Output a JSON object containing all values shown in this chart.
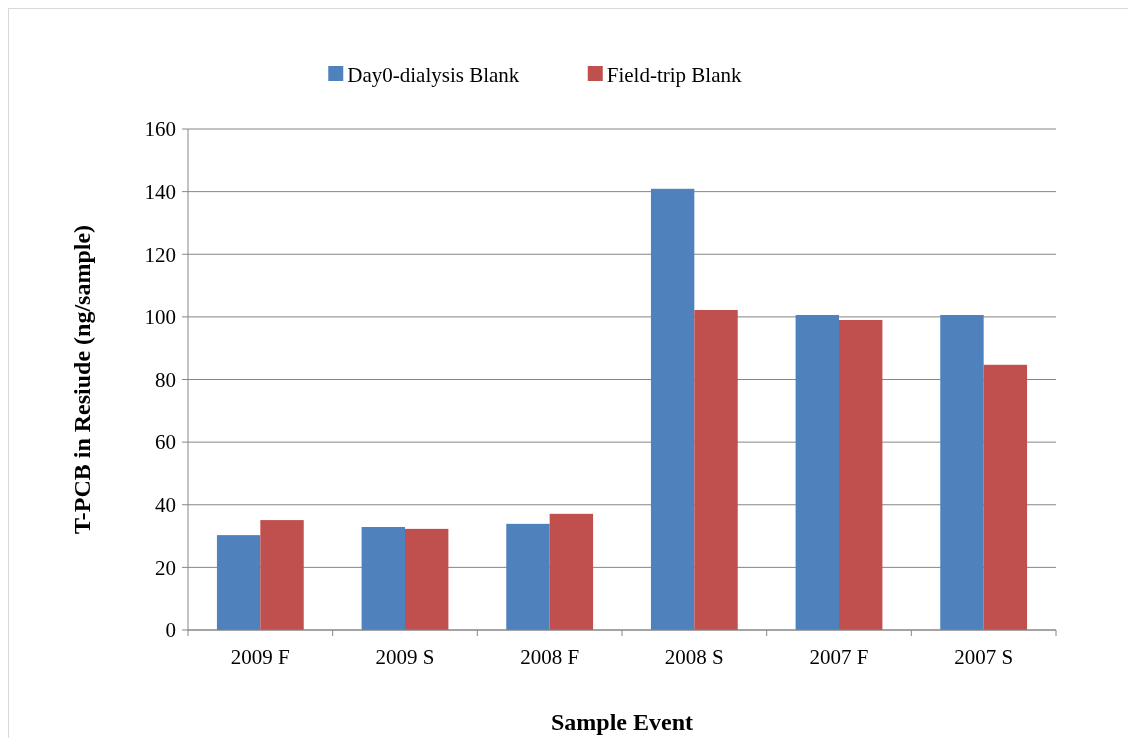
{
  "chart_data": {
    "type": "bar",
    "xlabel": "Sample Event",
    "ylabel": "T-PCB in Resiude (ng/sample)",
    "categories": [
      "2009 F",
      "2009 S",
      "2008 F",
      "2008 S",
      "2007 F",
      "2007 S"
    ],
    "series": [
      {
        "name": "Day0-dialysis Blank",
        "color": "#4f81bd",
        "values": [
          30.3,
          32.9,
          33.9,
          140.9,
          100.6,
          100.6
        ]
      },
      {
        "name": "Field-trip Blank",
        "color": "#c0504d",
        "values": [
          35.1,
          32.3,
          37.1,
          102.2,
          99.0,
          84.7
        ]
      }
    ],
    "ylim": [
      0,
      160
    ],
    "yticks": [
      0,
      20,
      40,
      60,
      80,
      100,
      120,
      140,
      160
    ],
    "grid": "y",
    "legend": "top"
  }
}
